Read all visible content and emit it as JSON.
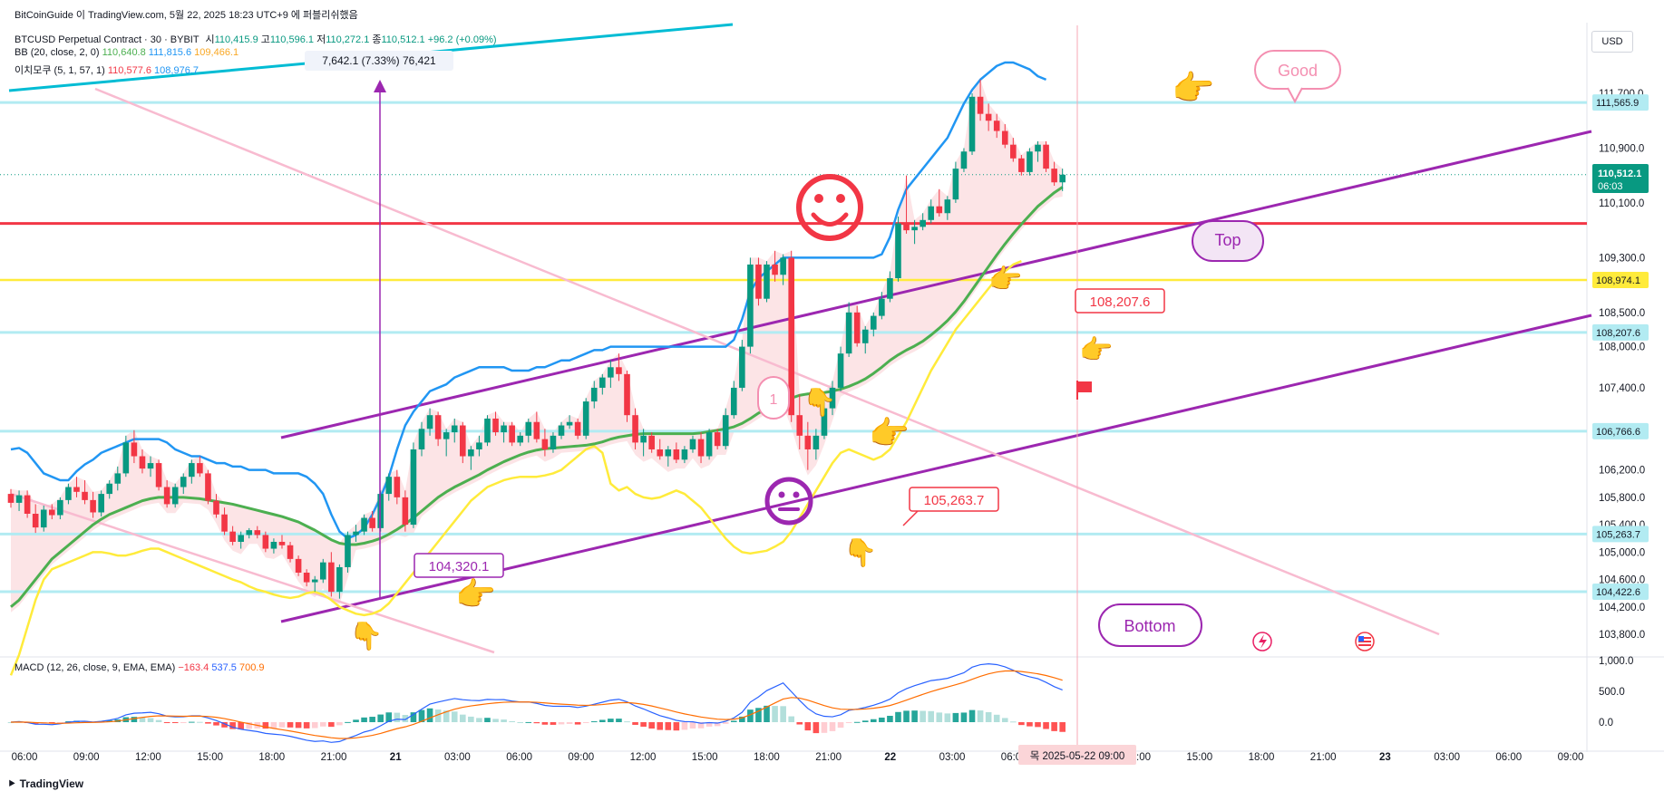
{
  "top_caption": "BitCoinGuide 이 TradingView.com, 5월 22, 2025 18:23 UTC+9 에 퍼블리쉬했음",
  "currency_button": "USD",
  "footer_brand": "TradingView",
  "legend": {
    "symbol": "BTCUSD Perpetual Contract · 30 · BYBIT",
    "ohlc": [
      {
        "label": "시",
        "value": "110,415.9"
      },
      {
        "label": "고",
        "value": "110,596.1"
      },
      {
        "label": "저",
        "value": "110,272.1"
      },
      {
        "label": "종",
        "value": "110,512.1"
      }
    ],
    "change": "+96.2 (+0.09%)",
    "bb_label": "BB (20, close, 2, 0)",
    "bb_values": [
      "110,640.8",
      "111,815.6",
      "109,466.1"
    ],
    "ichimoku_label": "이치모쿠 (5, 1, 57, 1)",
    "ichimoku_values": [
      "110,577.6",
      "108,976.7"
    ],
    "macd_label": "MACD (12, 26, close, 9, EMA, EMA)",
    "macd_values": [
      "−163.4",
      "537.5",
      "700.9"
    ]
  },
  "measure_label": "7,642.1 (7.33%) 76,421",
  "colors": {
    "up": "#089981",
    "down": "#f23645",
    "bb_basis": "#4caf50",
    "bb_upper": "#2196f3",
    "ichimoku_lag": "#ffeb3b",
    "cloud": "#fbd5d8",
    "channel": "#9c27b0",
    "pink_trend": "#f8bbd0",
    "teal_trend": "#00bcd4",
    "resistance": "#f23645",
    "support_cyan": "#b2ebf2",
    "support_yellow": "#ffeb3b",
    "macd_line": "#2962ff",
    "signal_line": "#ff6d00"
  },
  "chart_data": {
    "type": "candlestick",
    "title": "BTCUSD Perpetual Contract · 30 · BYBIT",
    "price_ticks": [
      "111,700.0",
      "110,900.0",
      "110,100.0",
      "109,300.0",
      "108,500.0",
      "108,000.0",
      "107,400.0",
      "106,200.0",
      "105,800.0",
      "105,400.0",
      "105,000.0",
      "104,600.0",
      "104,200.0",
      "103,800.0"
    ],
    "price_tick_values": [
      111700,
      110900,
      110100,
      109300,
      108500,
      108000,
      107400,
      106200,
      105800,
      105400,
      105000,
      104600,
      104200,
      103800
    ],
    "time_ticks": [
      "06:00",
      "09:00",
      "12:00",
      "15:00",
      "18:00",
      "21:00",
      "21",
      "03:00",
      "06:00",
      "09:00",
      "12:00",
      "15:00",
      "18:00",
      "21:00",
      "22",
      "03:00",
      "06:00",
      "09:00",
      "12:00",
      "15:00",
      "18:00",
      "21:00",
      "23",
      "03:00",
      "06:00",
      "09:00"
    ],
    "crosshair_time": "목 2025-05-22  09:00",
    "macd_ticks": [
      "1,000.0",
      "500.0",
      "0.0"
    ],
    "macd_tick_values": [
      1000,
      500,
      0
    ],
    "level_badges": [
      {
        "label": "111,565.9",
        "value": 111565.9
      },
      {
        "label": "108,974.1",
        "value": 108974.1
      },
      {
        "label": "108,207.6",
        "value": 108207.6
      },
      {
        "label": "106,766.6",
        "value": 106766.6
      },
      {
        "label": "105,263.7",
        "value": 105263.7
      },
      {
        "label": "104,422.6",
        "value": 104422.6
      }
    ],
    "current_price": {
      "label": "110,512.1",
      "countdown": "06:03",
      "value": 110512.1
    },
    "resistance_level": 109800,
    "candles": [
      [
        105850,
        105920,
        105650,
        105720
      ],
      [
        105720,
        105900,
        105600,
        105830
      ],
      [
        105830,
        105900,
        105500,
        105560
      ],
      [
        105560,
        105700,
        105280,
        105360
      ],
      [
        105360,
        105680,
        105300,
        105620
      ],
      [
        105620,
        105700,
        105480,
        105540
      ],
      [
        105540,
        105800,
        105480,
        105760
      ],
      [
        105760,
        106000,
        105700,
        105950
      ],
      [
        105950,
        106100,
        105800,
        105880
      ],
      [
        105880,
        106050,
        105700,
        105760
      ],
      [
        105760,
        105880,
        105500,
        105580
      ],
      [
        105580,
        105900,
        105520,
        105850
      ],
      [
        105850,
        106050,
        105780,
        106000
      ],
      [
        106000,
        106250,
        105900,
        106150
      ],
      [
        106150,
        106700,
        106100,
        106600
      ],
      [
        106600,
        106780,
        106300,
        106400
      ],
      [
        106400,
        106500,
        106150,
        106220
      ],
      [
        106220,
        106400,
        106100,
        106300
      ],
      [
        106300,
        106350,
        105900,
        105950
      ],
      [
        105950,
        106050,
        105650,
        105700
      ],
      [
        105700,
        106000,
        105650,
        105950
      ],
      [
        105950,
        106150,
        105850,
        106100
      ],
      [
        106100,
        106350,
        106000,
        106300
      ],
      [
        106300,
        106400,
        106100,
        106150
      ],
      [
        106150,
        106200,
        105700,
        105750
      ],
      [
        105750,
        105850,
        105500,
        105550
      ],
      [
        105550,
        105650,
        105250,
        105300
      ],
      [
        105300,
        105380,
        105100,
        105150
      ],
      [
        105150,
        105300,
        105050,
        105250
      ],
      [
        105250,
        105350,
        105200,
        105320
      ],
      [
        105320,
        105380,
        105200,
        105250
      ],
      [
        105250,
        105300,
        105000,
        105050
      ],
      [
        105050,
        105200,
        104980,
        105150
      ],
      [
        105150,
        105250,
        105050,
        105100
      ],
      [
        105100,
        105150,
        104850,
        104900
      ],
      [
        104900,
        104950,
        104650,
        104700
      ],
      [
        104700,
        104750,
        104500,
        104560
      ],
      [
        104560,
        104650,
        104420,
        104600
      ],
      [
        104600,
        104900,
        104550,
        104850
      ],
      [
        104850,
        105000,
        104350,
        104420
      ],
      [
        104420,
        104820,
        104320,
        104780
      ],
      [
        104780,
        105300,
        104700,
        105250
      ],
      [
        105250,
        105400,
        105150,
        105300
      ],
      [
        105300,
        105550,
        105250,
        105500
      ],
      [
        105500,
        105600,
        105300,
        105350
      ],
      [
        105350,
        105900,
        105300,
        105850
      ],
      [
        105850,
        106150,
        105750,
        106100
      ],
      [
        106100,
        106200,
        105700,
        105800
      ],
      [
        105800,
        105900,
        105300,
        105400
      ],
      [
        105400,
        106600,
        105350,
        106500
      ],
      [
        106500,
        106900,
        106400,
        106800
      ],
      [
        106800,
        107100,
        106700,
        107000
      ],
      [
        107000,
        107050,
        106550,
        106650
      ],
      [
        106650,
        106800,
        106400,
        106750
      ],
      [
        106750,
        106950,
        106600,
        106850
      ],
      [
        106850,
        106900,
        106300,
        106400
      ],
      [
        106400,
        106550,
        106200,
        106500
      ],
      [
        106500,
        106700,
        106400,
        106600
      ],
      [
        106600,
        107000,
        106550,
        106950
      ],
      [
        106950,
        107050,
        106700,
        106750
      ],
      [
        106750,
        106900,
        106600,
        106850
      ],
      [
        106850,
        106900,
        106550,
        106600
      ],
      [
        106600,
        106750,
        106550,
        106700
      ],
      [
        106700,
        106950,
        106600,
        106900
      ],
      [
        106900,
        107050,
        106600,
        106650
      ],
      [
        106650,
        106800,
        106400,
        106500
      ],
      [
        106500,
        106750,
        106450,
        106700
      ],
      [
        106700,
        106900,
        106650,
        106850
      ],
      [
        106850,
        107000,
        106800,
        106900
      ],
      [
        106900,
        106950,
        106650,
        106700
      ],
      [
        106700,
        107250,
        106650,
        107200
      ],
      [
        107200,
        107500,
        107100,
        107400
      ],
      [
        107400,
        107600,
        107300,
        107550
      ],
      [
        107550,
        107800,
        107400,
        107700
      ],
      [
        107700,
        107900,
        107500,
        107600
      ],
      [
        107600,
        107650,
        106900,
        107000
      ],
      [
        107000,
        107100,
        106500,
        106600
      ],
      [
        106600,
        106800,
        106400,
        106700
      ],
      [
        106700,
        106750,
        106450,
        106500
      ],
      [
        106500,
        106650,
        106350,
        106400
      ],
      [
        106400,
        106550,
        106250,
        106500
      ],
      [
        106500,
        106600,
        106300,
        106350
      ],
      [
        106350,
        106550,
        106300,
        106500
      ],
      [
        106500,
        106700,
        106450,
        106650
      ],
      [
        106650,
        106750,
        106300,
        106400
      ],
      [
        106400,
        106800,
        106350,
        106750
      ],
      [
        106750,
        106800,
        106500,
        106550
      ],
      [
        106550,
        107100,
        106500,
        107000
      ],
      [
        107000,
        107500,
        106950,
        107400
      ],
      [
        107400,
        108100,
        107350,
        108000
      ],
      [
        108000,
        109300,
        107900,
        109200
      ],
      [
        109200,
        109300,
        108600,
        108700
      ],
      [
        108700,
        109250,
        108650,
        109200
      ],
      [
        109200,
        109400,
        108950,
        109050
      ],
      [
        109050,
        109350,
        108900,
        109300
      ],
      [
        109300,
        109400,
        106900,
        107000
      ],
      [
        107000,
        107300,
        106500,
        106700
      ],
      [
        106700,
        106900,
        106200,
        106500
      ],
      [
        106500,
        106800,
        106350,
        106700
      ],
      [
        106700,
        107200,
        106650,
        107100
      ],
      [
        107100,
        107500,
        107000,
        107400
      ],
      [
        107400,
        108000,
        107350,
        107900
      ],
      [
        107900,
        108650,
        107850,
        108500
      ],
      [
        108500,
        108600,
        108000,
        108050
      ],
      [
        108050,
        108300,
        107900,
        108250
      ],
      [
        108250,
        108500,
        108150,
        108450
      ],
      [
        108450,
        108800,
        108400,
        108700
      ],
      [
        108700,
        109100,
        108650,
        109000
      ],
      [
        109000,
        109900,
        108950,
        109800
      ],
      [
        109800,
        110500,
        109650,
        109700
      ],
      [
        109700,
        109850,
        109500,
        109750
      ],
      [
        109750,
        109950,
        109700,
        109850
      ],
      [
        109850,
        110150,
        109800,
        110050
      ],
      [
        110050,
        110300,
        109900,
        109950
      ],
      [
        109950,
        110200,
        109850,
        110150
      ],
      [
        110150,
        110700,
        110100,
        110600
      ],
      [
        110600,
        110900,
        110550,
        110850
      ],
      [
        110850,
        111700,
        110800,
        111650
      ],
      [
        111650,
        111900,
        111300,
        111400
      ],
      [
        111400,
        111550,
        111150,
        111300
      ],
      [
        111300,
        111400,
        111050,
        111150
      ],
      [
        111150,
        111250,
        110900,
        110950
      ],
      [
        110950,
        111050,
        110700,
        110750
      ],
      [
        110750,
        110800,
        110500,
        110550
      ],
      [
        110550,
        110900,
        110500,
        110850
      ],
      [
        110850,
        111000,
        110700,
        110950
      ],
      [
        110950,
        111000,
        110550,
        110600
      ],
      [
        110600,
        110700,
        110350,
        110400
      ],
      [
        110400,
        110600,
        110272,
        110512
      ]
    ],
    "bb_upper": [
      106500,
      106520,
      106450,
      106300,
      106150,
      106100,
      106050,
      106050,
      106180,
      106280,
      106350,
      106450,
      106500,
      106550,
      106600,
      106650,
      106650,
      106650,
      106650,
      106600,
      106500,
      106450,
      106400,
      106400,
      106350,
      106300,
      106300,
      106250,
      106250,
      106200,
      106200,
      106200,
      106150,
      106150,
      106150,
      106150,
      106100,
      106000,
      105850,
      105550,
      105300,
      105200,
      105250,
      105350,
      105550,
      105800,
      106100,
      106500,
      106850,
      107050,
      107200,
      107350,
      107400,
      107450,
      107550,
      107600,
      107650,
      107700,
      107700,
      107700,
      107700,
      107650,
      107650,
      107650,
      107700,
      107700,
      107750,
      107800,
      107800,
      107850,
      107900,
      107950,
      107950,
      108000,
      108000,
      108000,
      108000,
      108000,
      108000,
      108000,
      108000,
      108000,
      108000,
      108000,
      108000,
      108000,
      108000,
      108000,
      108100,
      108400,
      108800,
      109000,
      109100,
      109200,
      109300,
      109300,
      109300,
      109300,
      109300,
      109300,
      109300,
      109300,
      109300,
      109300,
      109300,
      109300,
      109350,
      109600,
      110000,
      110300,
      110450,
      110600,
      110750,
      110900,
      111050,
      111300,
      111550,
      111750,
      111900,
      112000,
      112100,
      112150,
      112150,
      112100,
      112050,
      111950,
      111900
    ],
    "bb_basis": [
      104200,
      104300,
      104450,
      104600,
      104750,
      104900,
      105000,
      105100,
      105200,
      105300,
      105400,
      105480,
      105550,
      105600,
      105650,
      105700,
      105750,
      105780,
      105800,
      105800,
      105800,
      105800,
      105790,
      105780,
      105760,
      105740,
      105720,
      105700,
      105670,
      105640,
      105610,
      105580,
      105550,
      105520,
      105480,
      105440,
      105380,
      105320,
      105250,
      105180,
      105130,
      105110,
      105110,
      105130,
      105160,
      105200,
      105260,
      105330,
      105410,
      105500,
      105600,
      105700,
      105800,
      105880,
      105950,
      106010,
      106070,
      106130,
      106200,
      106260,
      106320,
      106370,
      106420,
      106460,
      106490,
      106510,
      106520,
      106530,
      106540,
      106550,
      106560,
      106580,
      106610,
      106650,
      106680,
      106700,
      106720,
      106730,
      106730,
      106730,
      106730,
      106730,
      106730,
      106730,
      106740,
      106760,
      106780,
      106800,
      106830,
      106880,
      106950,
      107030,
      107100,
      107160,
      107210,
      107250,
      107290,
      107310,
      107320,
      107330,
      107350,
      107380,
      107420,
      107470,
      107530,
      107610,
      107700,
      107800,
      107880,
      107950,
      108010,
      108080,
      108170,
      108270,
      108380,
      108510,
      108660,
      108830,
      109000,
      109170,
      109340,
      109500,
      109650,
      109790,
      109920,
      110050,
      110150,
      110250,
      110330
    ],
    "ichimoku_lag": [
      103200,
      103500,
      103900,
      104300,
      104600,
      104750,
      104800,
      104850,
      104900,
      104950,
      105000,
      105000,
      104980,
      104950,
      104950,
      104980,
      105020,
      105050,
      105050,
      105000,
      104950,
      104900,
      104850,
      104800,
      104750,
      104700,
      104650,
      104600,
      104560,
      104500,
      104450,
      104420,
      104380,
      104350,
      104330,
      104350,
      104400,
      104420,
      104380,
      104300,
      104200,
      104150,
      104100,
      104080,
      104100,
      104150,
      104250,
      104400,
      104550,
      104700,
      104850,
      105000,
      105150,
      105300,
      105450,
      105600,
      105750,
      105850,
      105950,
      106000,
      106050,
      106080,
      106100,
      106100,
      106100,
      106120,
      106150,
      106200,
      106300,
      106400,
      106500,
      106550,
      106450,
      106000,
      105900,
      105950,
      105850,
      105800,
      105780,
      105800,
      105850,
      105900,
      105850,
      105750,
      105650,
      105500,
      105350,
      105200,
      105080,
      105000,
      104980,
      105000,
      105020,
      105080,
      105150,
      105300,
      105500,
      105700,
      105900,
      106100,
      106300,
      106450,
      106500,
      106450,
      106400,
      106350,
      106400,
      106500,
      106700,
      106900,
      107150,
      107400,
      107650,
      107850,
      108050,
      108250,
      108400,
      108550,
      108700,
      108850,
      109000,
      109100,
      109200,
      109250
    ]
  },
  "annotations": {
    "good_bubble": "Good",
    "top_bubble": "Top",
    "bottom_bubble": "Bottom",
    "wave_1_bubble": "1",
    "low_label_104": "104,320.1",
    "low_label_105": "105,263.7",
    "level_label_108": "108,207.6"
  }
}
